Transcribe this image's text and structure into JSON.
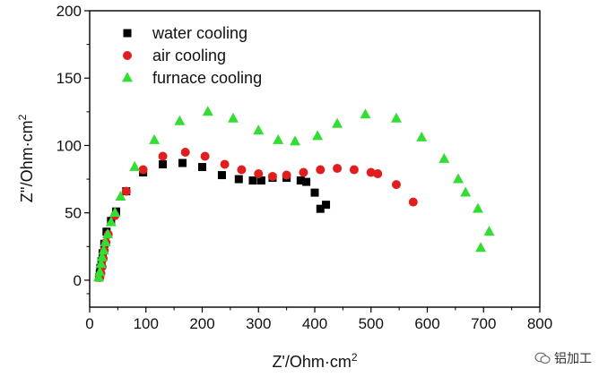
{
  "chart_data": {
    "type": "scatter",
    "title": "",
    "xlabel": "Z'/Ohm·cm",
    "xlabel_sup": "2",
    "ylabel": "Z''/Ohm·cm",
    "ylabel_sup": "2",
    "xlim": [
      0,
      800
    ],
    "ylim": [
      -20,
      200
    ],
    "xticks": [
      0,
      100,
      200,
      300,
      400,
      500,
      600,
      700,
      800
    ],
    "yticks": [
      0,
      50,
      100,
      150,
      200
    ],
    "legend_position": "top-left",
    "series": [
      {
        "name": "water cooling",
        "color": "#000000",
        "marker": "square",
        "points": [
          [
            17,
            2
          ],
          [
            18,
            5
          ],
          [
            19,
            9
          ],
          [
            21,
            14
          ],
          [
            23,
            20
          ],
          [
            26,
            27
          ],
          [
            30,
            36
          ],
          [
            38,
            44
          ],
          [
            47,
            51
          ],
          [
            65,
            66
          ],
          [
            95,
            80
          ],
          [
            130,
            86
          ],
          [
            165,
            87
          ],
          [
            200,
            84
          ],
          [
            235,
            78
          ],
          [
            265,
            75
          ],
          [
            290,
            74
          ],
          [
            305,
            74
          ],
          [
            325,
            76
          ],
          [
            350,
            76
          ],
          [
            375,
            74
          ],
          [
            385,
            73
          ],
          [
            400,
            65
          ],
          [
            410,
            53
          ],
          [
            420,
            56
          ]
        ]
      },
      {
        "name": "air cooling",
        "color": "#e01e1e",
        "marker": "circle",
        "points": [
          [
            18,
            2
          ],
          [
            20,
            5
          ],
          [
            22,
            10
          ],
          [
            24,
            16
          ],
          [
            26,
            22
          ],
          [
            29,
            28
          ],
          [
            33,
            34
          ],
          [
            45,
            48
          ],
          [
            65,
            66
          ],
          [
            95,
            82
          ],
          [
            130,
            92
          ],
          [
            170,
            95
          ],
          [
            205,
            92
          ],
          [
            240,
            86
          ],
          [
            270,
            82
          ],
          [
            300,
            79
          ],
          [
            325,
            77
          ],
          [
            350,
            78
          ],
          [
            380,
            80
          ],
          [
            410,
            82
          ],
          [
            440,
            83
          ],
          [
            470,
            82
          ],
          [
            500,
            80
          ],
          [
            512,
            79
          ],
          [
            545,
            71
          ],
          [
            575,
            58
          ]
        ]
      },
      {
        "name": "furnace cooling",
        "color": "#33dd33",
        "marker": "triangle",
        "points": [
          [
            16,
            2
          ],
          [
            18,
            6
          ],
          [
            20,
            12
          ],
          [
            22,
            17
          ],
          [
            25,
            22
          ],
          [
            28,
            28
          ],
          [
            32,
            34
          ],
          [
            38,
            43
          ],
          [
            45,
            50
          ],
          [
            55,
            62
          ],
          [
            80,
            84
          ],
          [
            115,
            104
          ],
          [
            160,
            118
          ],
          [
            210,
            125
          ],
          [
            255,
            120
          ],
          [
            300,
            111
          ],
          [
            335,
            104
          ],
          [
            365,
            103
          ],
          [
            405,
            107
          ],
          [
            440,
            116
          ],
          [
            490,
            123
          ],
          [
            545,
            120
          ],
          [
            590,
            106
          ],
          [
            630,
            90
          ],
          [
            655,
            75
          ],
          [
            668,
            65
          ],
          [
            690,
            53
          ],
          [
            710,
            36
          ],
          [
            695,
            24
          ]
        ]
      }
    ]
  },
  "watermark": {
    "text": "铝加工"
  }
}
